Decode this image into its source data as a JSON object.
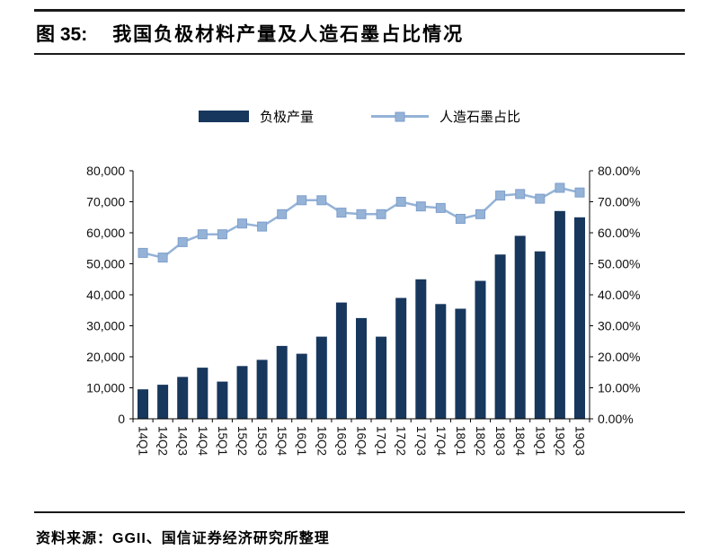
{
  "header": {
    "figure_label": "图 35:",
    "title": "我国负极材料产量及人造石墨占比情况"
  },
  "legend": {
    "items": [
      {
        "label": "负极产量",
        "type": "bar"
      },
      {
        "label": "人造石墨占比",
        "type": "line"
      }
    ]
  },
  "footer": {
    "source": "资料来源：GGII、国信证券经济研究所整理"
  },
  "colors": {
    "bar": "#17375d",
    "line": "#95b3d7",
    "marker_edge": "#7e9ecb",
    "axis": "#000000",
    "rule": "#1a1a1a",
    "tick_text": "#111111"
  },
  "chart_data": {
    "type": "bar",
    "subtype": "bar-line-combo",
    "title": "我国负极材料产量及人造石墨占比情况",
    "xlabel": "",
    "ylabel_left": "",
    "ylabel_right": "",
    "grid": false,
    "legend_position": "top",
    "categories": [
      "14Q1",
      "14Q2",
      "14Q3",
      "14Q4",
      "15Q1",
      "15Q2",
      "15Q3",
      "15Q4",
      "16Q1",
      "16Q2",
      "16Q3",
      "16Q4",
      "17Q1",
      "17Q2",
      "17Q3",
      "17Q4",
      "18Q1",
      "18Q2",
      "18Q3",
      "18Q4",
      "19Q1",
      "19Q2",
      "19Q3"
    ],
    "series": [
      {
        "name": "负极产量",
        "type": "bar",
        "axis": "left",
        "color": "#17375d",
        "values": [
          9500,
          11000,
          13500,
          16500,
          12000,
          17000,
          19000,
          23500,
          21000,
          26500,
          37500,
          32500,
          26500,
          39000,
          45000,
          37000,
          35500,
          44500,
          53000,
          59000,
          54000,
          67000,
          65000
        ]
      },
      {
        "name": "人造石墨占比",
        "type": "line",
        "axis": "right",
        "color": "#95b3d7",
        "marker": "square",
        "values": [
          0.535,
          0.52,
          0.57,
          0.595,
          0.595,
          0.63,
          0.62,
          0.66,
          0.705,
          0.705,
          0.665,
          0.66,
          0.66,
          0.7,
          0.685,
          0.68,
          0.645,
          0.66,
          0.72,
          0.725,
          0.71,
          0.745,
          0.73
        ]
      }
    ],
    "left_axis": {
      "min": 0,
      "max": 80000,
      "step": 10000,
      "ticks": [
        "0",
        "10,000",
        "20,000",
        "30,000",
        "40,000",
        "50,000",
        "60,000",
        "70,000",
        "80,000"
      ]
    },
    "right_axis": {
      "min": 0,
      "max": 0.8,
      "step": 0.1,
      "ticks": [
        "0.00%",
        "10.00%",
        "20.00%",
        "30.00%",
        "40.00%",
        "50.00%",
        "60.00%",
        "70.00%",
        "80.00%"
      ]
    }
  }
}
